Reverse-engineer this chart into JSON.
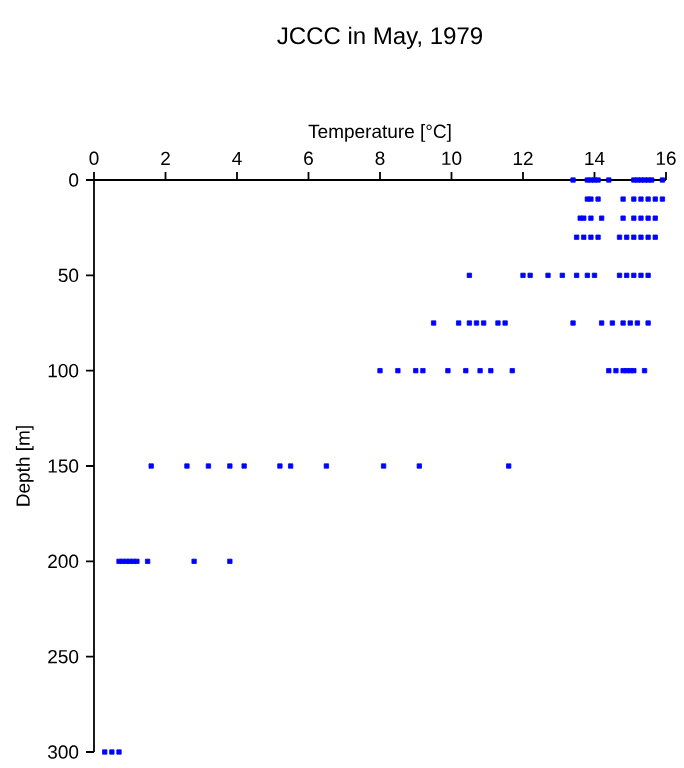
{
  "chart_data": {
    "type": "scatter",
    "title": "JCCC in May, 1979",
    "xlabel": "Temperature [°C]",
    "ylabel": "Depth [m]",
    "xlim": [
      0,
      16
    ],
    "xticks": [
      0,
      2,
      4,
      6,
      8,
      10,
      12,
      14,
      16
    ],
    "ylim": [
      300,
      0
    ],
    "yticks": [
      0,
      50,
      100,
      150,
      200,
      250,
      300
    ],
    "marker": "square",
    "color": "#0000ff",
    "x": [
      13.4,
      13.8,
      13.9,
      14.0,
      14.1,
      14.4,
      15.1,
      15.2,
      15.3,
      15.4,
      15.5,
      15.6,
      15.9,
      13.8,
      13.9,
      14.1,
      14.8,
      15.1,
      15.3,
      15.5,
      15.7,
      15.9,
      13.6,
      13.7,
      13.9,
      14.2,
      14.8,
      15.1,
      15.3,
      15.5,
      15.7,
      13.5,
      13.7,
      13.9,
      14.1,
      14.7,
      14.9,
      15.1,
      15.3,
      15.5,
      15.7,
      10.5,
      12.0,
      12.2,
      12.7,
      13.1,
      13.5,
      13.8,
      14.0,
      14.7,
      14.9,
      15.1,
      15.3,
      15.5,
      9.5,
      10.2,
      10.5,
      10.7,
      10.9,
      11.3,
      11.5,
      13.4,
      14.2,
      14.5,
      14.8,
      15.0,
      15.2,
      15.5,
      8.0,
      8.5,
      9.0,
      9.2,
      9.9,
      10.4,
      10.8,
      11.1,
      11.7,
      14.4,
      14.6,
      14.8,
      14.9,
      15.0,
      15.1,
      15.4,
      1.6,
      2.6,
      3.2,
      3.8,
      4.2,
      5.2,
      5.5,
      6.5,
      8.1,
      9.1,
      11.6,
      0.7,
      0.8,
      0.9,
      1.0,
      1.1,
      1.2,
      1.5,
      2.8,
      3.8,
      0.3,
      0.5,
      0.7
    ],
    "values": [
      0,
      0,
      0,
      0,
      0,
      0,
      0,
      0,
      0,
      0,
      0,
      0,
      0,
      10,
      10,
      10,
      10,
      10,
      10,
      10,
      10,
      10,
      20,
      20,
      20,
      20,
      20,
      20,
      20,
      20,
      20,
      30,
      30,
      30,
      30,
      30,
      30,
      30,
      30,
      30,
      30,
      50,
      50,
      50,
      50,
      50,
      50,
      50,
      50,
      50,
      50,
      50,
      50,
      50,
      75,
      75,
      75,
      75,
      75,
      75,
      75,
      75,
      75,
      75,
      75,
      75,
      75,
      75,
      100,
      100,
      100,
      100,
      100,
      100,
      100,
      100,
      100,
      100,
      100,
      100,
      100,
      100,
      100,
      100,
      150,
      150,
      150,
      150,
      150,
      150,
      150,
      150,
      150,
      150,
      150,
      200,
      200,
      200,
      200,
      200,
      200,
      200,
      200,
      200,
      300,
      300,
      300
    ]
  }
}
